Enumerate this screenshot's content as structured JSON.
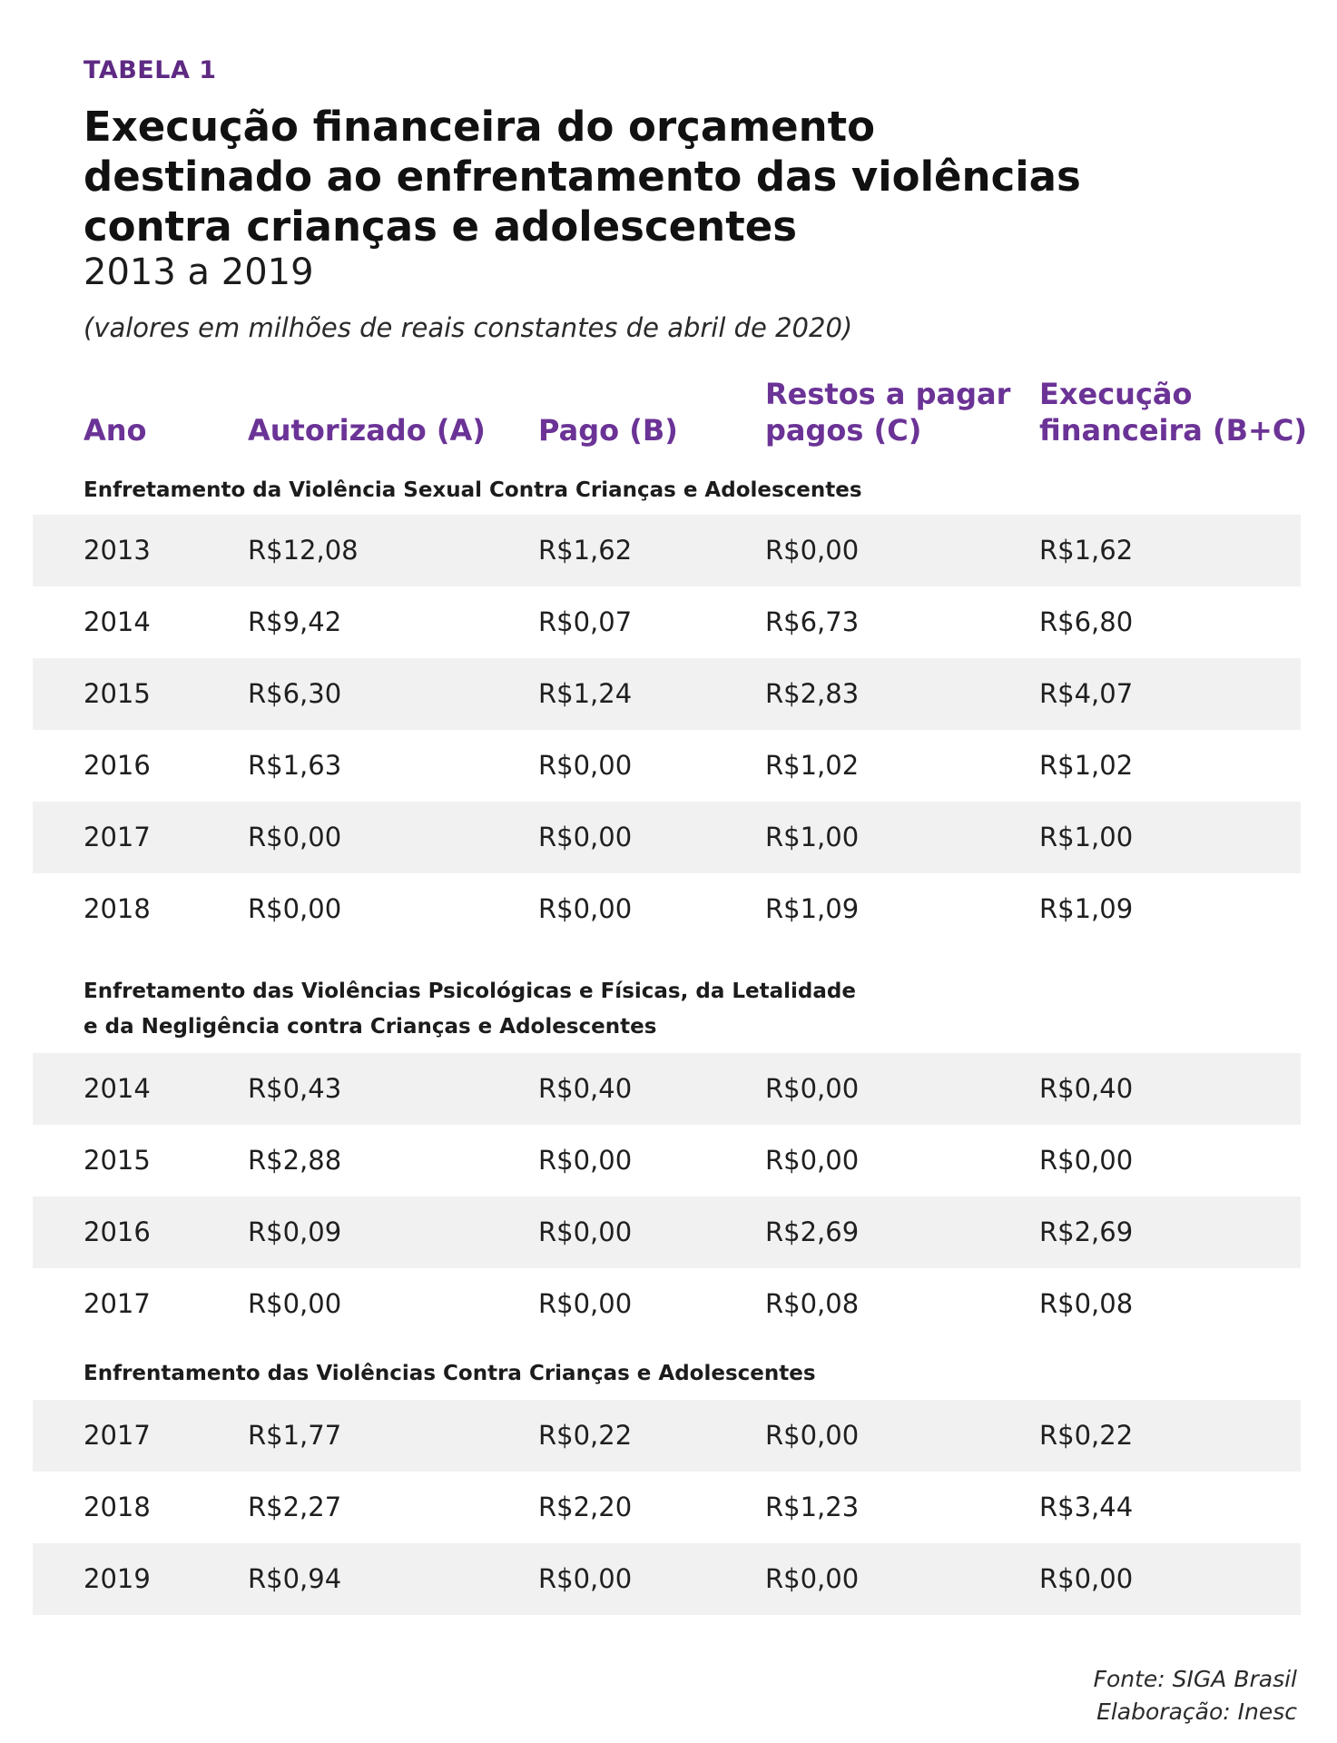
{
  "label": "TABELA 1",
  "title_lines": [
    "Execução financeira do orçamento",
    "destinado ao enfrentamento das violências",
    "contra crianças e adolescentes"
  ],
  "subtitle": "2013 a 2019",
  "note": "(valores em milhões de reais constantes de abril de 2020)",
  "columns": {
    "ano": "Ano",
    "autorizado": "Autorizado (A)",
    "pago": "Pago (B)",
    "restos_line1": "Restos a pagar",
    "restos_line2": "pagos (C)",
    "execucao_line1": "Execução",
    "execucao_line2": "financeira (B+C)"
  },
  "sections": [
    {
      "title_lines": [
        "Enfretamento da Violência Sexual Contra Crianças e Adolescentes"
      ],
      "rows": [
        [
          "2013",
          "R$12,08",
          "R$1,62",
          "R$0,00",
          "R$1,62"
        ],
        [
          "2014",
          "R$9,42",
          "R$0,07",
          "R$6,73",
          "R$6,80"
        ],
        [
          "2015",
          "R$6,30",
          "R$1,24",
          "R$2,83",
          "R$4,07"
        ],
        [
          "2016",
          "R$1,63",
          "R$0,00",
          "R$1,02",
          "R$1,02"
        ],
        [
          "2017",
          "R$0,00",
          "R$0,00",
          "R$1,00",
          "R$1,00"
        ],
        [
          "2018",
          "R$0,00",
          "R$0,00",
          "R$1,09",
          "R$1,09"
        ]
      ]
    },
    {
      "title_lines": [
        "Enfretamento das Violências Psicológicas e Físicas, da Letalidade",
        "e da Negligência contra Crianças e Adolescentes"
      ],
      "rows": [
        [
          "2014",
          "R$0,43",
          "R$0,40",
          "R$0,00",
          "R$0,40"
        ],
        [
          "2015",
          "R$2,88",
          "R$0,00",
          "R$0,00",
          "R$0,00"
        ],
        [
          "2016",
          "R$0,09",
          "R$0,00",
          "R$2,69",
          "R$2,69"
        ],
        [
          "2017",
          "R$0,00",
          "R$0,00",
          "R$0,08",
          "R$0,08"
        ]
      ]
    },
    {
      "title_lines": [
        "Enfrentamento das Violências Contra Crianças e Adolescentes"
      ],
      "rows": [
        [
          "2017",
          "R$1,77",
          "R$0,22",
          "R$0,00",
          "R$0,22"
        ],
        [
          "2018",
          "R$2,27",
          "R$2,20",
          "R$1,23",
          "R$3,44"
        ],
        [
          "2019",
          "R$0,94",
          "R$0,00",
          "R$0,00",
          "R$0,00"
        ]
      ]
    }
  ],
  "source": {
    "line1": "Fonte: SIGA Brasil",
    "line2": "Elaboração: Inesc"
  }
}
